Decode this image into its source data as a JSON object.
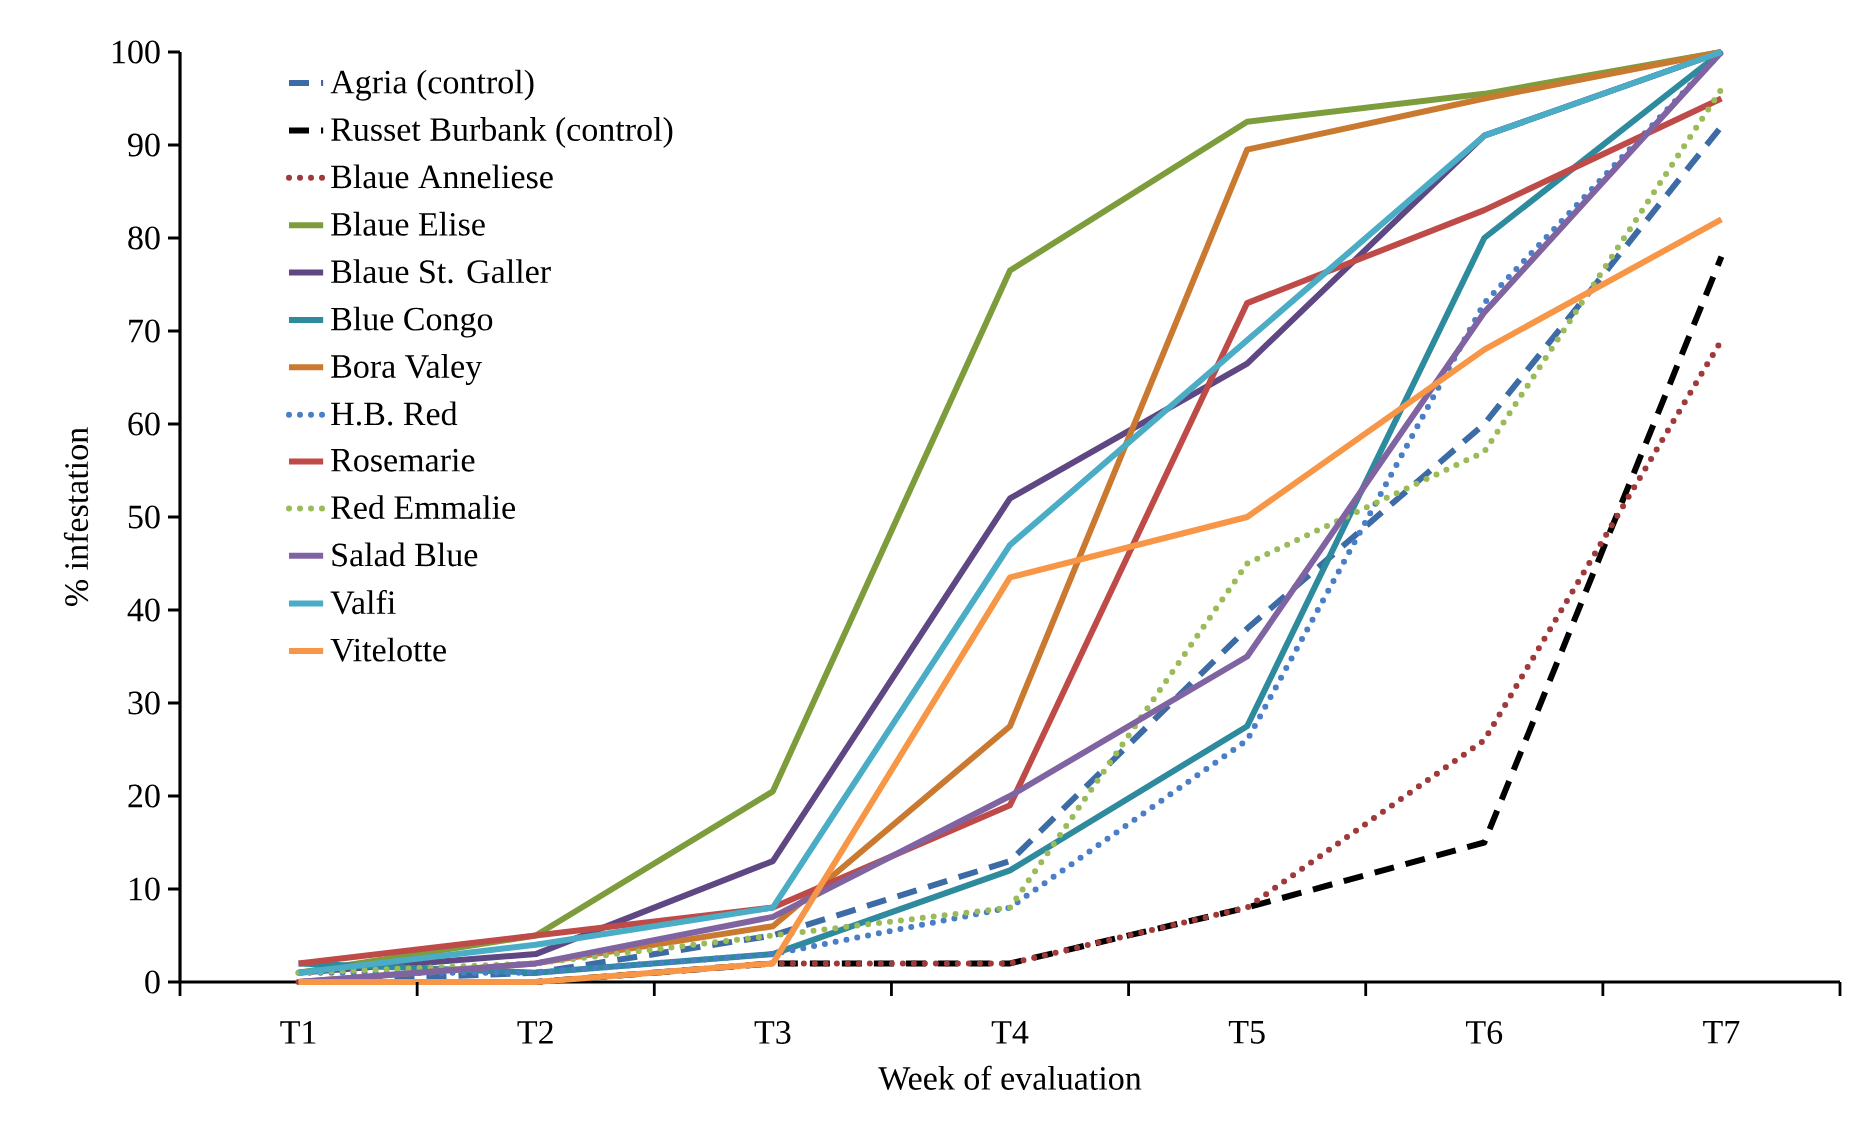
{
  "chart_data": {
    "type": "line",
    "xlabel": "Week of evaluation",
    "ylabel": "% infestation",
    "categories": [
      "T1",
      "T2",
      "T3",
      "T4",
      "T5",
      "T6",
      "T7"
    ],
    "ylim": [
      0,
      100
    ],
    "yticks": [
      0,
      10,
      20,
      30,
      40,
      50,
      60,
      70,
      80,
      90,
      100
    ],
    "grid": false,
    "legend": "top left",
    "marker": "none",
    "series": [
      {
        "name": "Agria (control)",
        "color": "#3d6ba5",
        "line_style": "dashed",
        "values": [
          0,
          1,
          5,
          13,
          38,
          60,
          92
        ]
      },
      {
        "name": "Russet Burbank (control)",
        "color": "#000000",
        "line_style": "dashed",
        "values": [
          0,
          0,
          2,
          2,
          8,
          15,
          78
        ]
      },
      {
        "name": "Blaue Anneliese",
        "color": "#a0393a",
        "line_style": "dotted",
        "values": [
          0,
          0,
          2,
          2,
          8,
          26,
          69
        ]
      },
      {
        "name": "Blaue Elise",
        "color": "#7d9c3c",
        "line_style": "solid",
        "values": [
          1,
          5,
          20.5,
          76.5,
          92.5,
          95.5,
          100
        ]
      },
      {
        "name": "Blaue St. Galler",
        "color": "#5e4782",
        "line_style": "solid",
        "values": [
          1,
          3,
          13,
          52,
          66.5,
          91,
          100
        ]
      },
      {
        "name": "Blue Congo",
        "color": "#2e8a9d",
        "line_style": "solid",
        "values": [
          2,
          1,
          3,
          12,
          27.5,
          80,
          100
        ]
      },
      {
        "name": "Bora Valey",
        "color": "#c97a30",
        "line_style": "solid",
        "values": [
          0,
          2,
          6,
          27.5,
          89.5,
          95,
          100
        ]
      },
      {
        "name": "H.B. Red",
        "color": "#4a7ec7",
        "line_style": "dotted",
        "values": [
          1,
          1,
          3,
          8,
          26,
          73,
          100
        ]
      },
      {
        "name": "Rosemarie",
        "color": "#bf4b48",
        "line_style": "solid",
        "values": [
          2,
          5,
          8,
          19,
          73,
          83,
          95
        ]
      },
      {
        "name": "Red Emmalie",
        "color": "#9bbb59",
        "line_style": "dotted",
        "values": [
          1,
          2,
          5,
          8,
          45,
          57,
          96
        ]
      },
      {
        "name": "Salad Blue",
        "color": "#8064a2",
        "line_style": "solid",
        "values": [
          0,
          2,
          7,
          20,
          35,
          72,
          100
        ]
      },
      {
        "name": "Valfi",
        "color": "#4bacc6",
        "line_style": "solid",
        "values": [
          1,
          4,
          8,
          47,
          69,
          91,
          100
        ]
      },
      {
        "name": "Vitelotte",
        "color": "#f79646",
        "line_style": "solid",
        "values": [
          0,
          0,
          2,
          43.5,
          50,
          68,
          82
        ]
      }
    ]
  }
}
